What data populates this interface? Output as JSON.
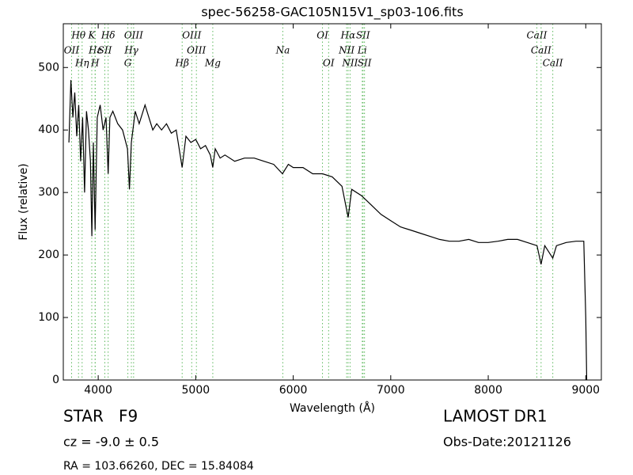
{
  "chart_data": {
    "type": "line",
    "title": "spec-56258-GAC105N15V1_sp03-106.fits",
    "xlabel": "Wavelength (Å)",
    "ylabel": "Flux (relative)",
    "xlim": [
      3642,
      9160
    ],
    "ylim": [
      0,
      570
    ],
    "xticks": [
      4000,
      5000,
      6000,
      7000,
      8000,
      9000
    ],
    "yticks": [
      0,
      100,
      200,
      300,
      400,
      500
    ],
    "x": [
      3700,
      3720,
      3740,
      3760,
      3780,
      3800,
      3820,
      3840,
      3860,
      3880,
      3900,
      3920,
      3935,
      3950,
      3968,
      3990,
      4020,
      4050,
      4080,
      4102,
      4120,
      4150,
      4200,
      4250,
      4300,
      4320,
      4340,
      4380,
      4420,
      4480,
      4520,
      4560,
      4600,
      4650,
      4700,
      4750,
      4800,
      4861,
      4900,
      4950,
      5000,
      5050,
      5100,
      5150,
      5175,
      5200,
      5250,
      5300,
      5400,
      5500,
      5600,
      5700,
      5800,
      5890,
      5950,
      6000,
      6100,
      6200,
      6300,
      6400,
      6500,
      6563,
      6600,
      6700,
      6800,
      6900,
      7000,
      7100,
      7200,
      7300,
      7400,
      7500,
      7600,
      7700,
      7800,
      7900,
      8000,
      8100,
      8200,
      8300,
      8400,
      8500,
      8542,
      8580,
      8662,
      8700,
      8800,
      8900,
      8980,
      9000,
      9010
    ],
    "series": [
      {
        "name": "flux",
        "color": "#000000",
        "values": [
          380,
          480,
          420,
          460,
          390,
          440,
          350,
          420,
          300,
          430,
          400,
          350,
          230,
          380,
          240,
          420,
          440,
          400,
          420,
          330,
          420,
          430,
          410,
          400,
          370,
          305,
          380,
          430,
          410,
          440,
          420,
          400,
          410,
          400,
          410,
          395,
          400,
          340,
          390,
          380,
          385,
          370,
          375,
          360,
          340,
          370,
          355,
          360,
          350,
          355,
          355,
          350,
          345,
          330,
          345,
          340,
          340,
          330,
          330,
          325,
          310,
          260,
          305,
          295,
          280,
          265,
          255,
          245,
          240,
          235,
          230,
          225,
          222,
          222,
          225,
          220,
          220,
          222,
          225,
          225,
          220,
          215,
          185,
          215,
          195,
          215,
          220,
          222,
          222,
          100,
          0
        ]
      }
    ],
    "line_color": "#5cb85c",
    "spectral_lines": [
      [
        {
          "label": "Hθ",
          "wavelength": 3798
        },
        {
          "label": "K",
          "wavelength": 3934
        },
        {
          "label": "Hδ",
          "wavelength": 4102
        },
        {
          "label": "OIII",
          "wavelength": 4363
        },
        {
          "label": "OIII",
          "wavelength": 4959
        },
        {
          "label": "OI",
          "wavelength": 6300
        },
        {
          "label": "Hα",
          "wavelength": 6563
        },
        {
          "label": "SII",
          "wavelength": 6716
        },
        {
          "label": "CaII",
          "wavelength": 8498
        }
      ],
      [
        {
          "label": "OII",
          "wavelength": 3727
        },
        {
          "label": "Hε",
          "wavelength": 3970
        },
        {
          "label": "SII",
          "wavelength": 4068
        },
        {
          "label": "Hγ",
          "wavelength": 4340
        },
        {
          "label": "OIII",
          "wavelength": 5007
        },
        {
          "label": "Na",
          "wavelength": 5893
        },
        {
          "label": "NII",
          "wavelength": 6548
        },
        {
          "label": "Li",
          "wavelength": 6708
        },
        {
          "label": "CaII",
          "wavelength": 8542
        }
      ],
      [
        {
          "label": "Hη",
          "wavelength": 3835
        },
        {
          "label": "H",
          "wavelength": 3968
        },
        {
          "label": "G",
          "wavelength": 4304
        },
        {
          "label": "Hβ",
          "wavelength": 4861
        },
        {
          "label": "Mg",
          "wavelength": 5175
        },
        {
          "label": "OI",
          "wavelength": 6363
        },
        {
          "label": "NII",
          "wavelength": 6583
        },
        {
          "label": "SII",
          "wavelength": 6731
        },
        {
          "label": "CaII",
          "wavelength": 8662
        }
      ]
    ],
    "footer": {
      "object": "STAR   F9",
      "cz": "cz = -9.0 ± 0.5",
      "coords": "RA = 103.66260, DEC = 15.84084",
      "survey": "LAMOST DR1",
      "obs_date": "Obs-Date:20121126"
    }
  }
}
